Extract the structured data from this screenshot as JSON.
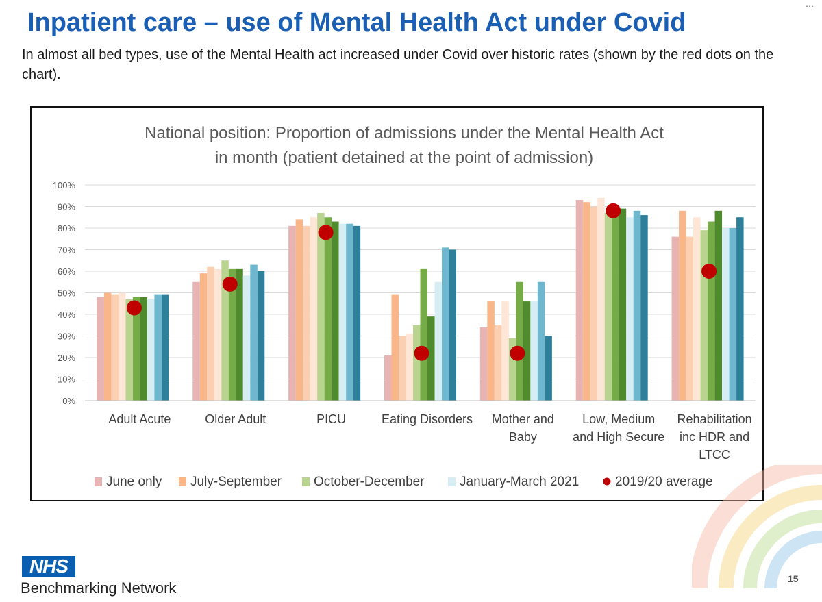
{
  "slide": {
    "title": "Inpatient care – use of Mental Health Act under Covid",
    "subtitle": "In almost all bed types, use of the Mental Health act increased under Covid over historic rates (shown by the red dots on the chart).",
    "page_number": "15",
    "logo_text": "NHS",
    "footer_text": "Benchmarking Network",
    "corner_glyph": "⋯"
  },
  "colors": {
    "title": "#1b5fb4",
    "june": [
      "#e8b4b3"
    ],
    "jul_sep": [
      "#f8b689",
      "#fbd0b2",
      "#fde6d6"
    ],
    "oct_dec": [
      "#b9d48f",
      "#76ac47",
      "#4f8a2c"
    ],
    "jan_mar": [
      "#d6edf3",
      "#6fb7cf",
      "#2d7f9a"
    ],
    "avg_dot": "#c00000"
  },
  "chart_data": {
    "type": "bar",
    "title_lines": [
      "National position: Proportion of admissions under the Mental Health Act",
      "in month (patient detained at the point of admission)"
    ],
    "y_tick_labels": [
      "0%",
      "10%",
      "20%",
      "30%",
      "40%",
      "50%",
      "60%",
      "70%",
      "80%",
      "90%",
      "100%"
    ],
    "ylim": [
      0,
      100
    ],
    "grid": true,
    "legend_position": "bottom",
    "categories": [
      [
        "Adult Acute"
      ],
      [
        "Older Adult"
      ],
      [
        "PICU"
      ],
      [
        "Eating Disorders"
      ],
      [
        "Mother and",
        "Baby"
      ],
      [
        "Low, Medium",
        "and High Secure"
      ],
      [
        "Rehabilitation",
        "inc HDR and",
        "LTCC"
      ]
    ],
    "series": [
      {
        "name": "June only",
        "group": "june",
        "values": [
          [
            48
          ],
          [
            55
          ],
          [
            81
          ],
          [
            21
          ],
          [
            34
          ],
          [
            93
          ],
          [
            76
          ]
        ]
      },
      {
        "name": "July-September",
        "group": "jul_sep",
        "values": [
          [
            50,
            49,
            50
          ],
          [
            59,
            62,
            61
          ],
          [
            84,
            81,
            85
          ],
          [
            49,
            30,
            31
          ],
          [
            46,
            35,
            46
          ],
          [
            92,
            90,
            94
          ],
          [
            88,
            76,
            85
          ]
        ]
      },
      {
        "name": "October-December",
        "group": "oct_dec",
        "values": [
          [
            47,
            48,
            48
          ],
          [
            65,
            61,
            61
          ],
          [
            87,
            85,
            83
          ],
          [
            35,
            61,
            39
          ],
          [
            29,
            55,
            46
          ],
          [
            87,
            89,
            89
          ],
          [
            79,
            83,
            88
          ]
        ]
      },
      {
        "name": "January-March 2021",
        "group": "jan_mar",
        "values": [
          [
            47,
            49,
            49
          ],
          [
            58,
            63,
            60
          ],
          [
            82,
            82,
            81
          ],
          [
            55,
            71,
            70
          ],
          [
            46,
            55,
            30
          ],
          [
            85,
            88,
            86
          ],
          [
            80,
            80,
            85
          ]
        ]
      }
    ],
    "average": {
      "name": "2019/20 average",
      "values": [
        43,
        54,
        78,
        22,
        22,
        88,
        60
      ]
    }
  }
}
